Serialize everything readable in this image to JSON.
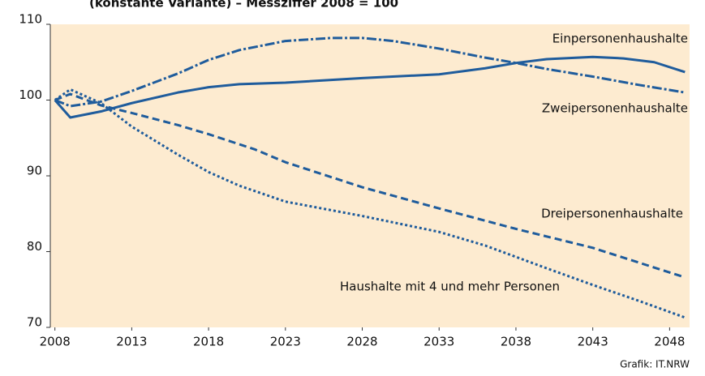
{
  "chart_data": {
    "type": "line",
    "subtitle": "(konstante Variante) – Messziffer 2008 = 100",
    "credit": "Grafik: IT.NRW",
    "xlim": [
      2007.7,
      2049.3
    ],
    "ylim": [
      70,
      110
    ],
    "xticks": [
      2008,
      2013,
      2018,
      2023,
      2028,
      2033,
      2038,
      2043,
      2048
    ],
    "yticks": [
      70,
      80,
      90,
      100,
      110
    ],
    "background": "#fdebd0",
    "series": [
      {
        "name": "Einpersonenhaushalte",
        "color": "#1f5c9c",
        "style": "solid",
        "x": [
          2008,
          2009,
          2011,
          2013,
          2016,
          2018,
          2020,
          2023,
          2028,
          2033,
          2036,
          2038,
          2040,
          2043,
          2045,
          2047,
          2049
        ],
        "values": [
          100,
          97.7,
          98.5,
          99.6,
          101,
          101.7,
          102.1,
          102.3,
          102.9,
          103.4,
          104.2,
          104.9,
          105.4,
          105.7,
          105.5,
          105,
          103.7
        ]
      },
      {
        "name": "Zweipersonenhaushalte",
        "color": "#1f5c9c",
        "style": "dashdot",
        "x": [
          2008,
          2009,
          2011,
          2013,
          2016,
          2018,
          2020,
          2023,
          2026,
          2028,
          2030,
          2033,
          2036,
          2038,
          2040,
          2043,
          2046,
          2049
        ],
        "values": [
          100,
          99.2,
          99.8,
          101.2,
          103.5,
          105.3,
          106.6,
          107.8,
          108.2,
          108.2,
          107.8,
          106.8,
          105.6,
          104.9,
          104.1,
          103.1,
          102,
          101
        ]
      },
      {
        "name": "Dreipersonenhaushalte",
        "color": "#1f5c9c",
        "style": "dashed",
        "x": [
          2008,
          2009,
          2011,
          2013,
          2016,
          2018,
          2021,
          2023,
          2028,
          2033,
          2038,
          2043,
          2049
        ],
        "values": [
          100,
          100.8,
          99.3,
          98.3,
          96.7,
          95.5,
          93.5,
          91.8,
          88.5,
          85.7,
          83,
          80.5,
          76.6
        ]
      },
      {
        "name": "Haushalte mit 4 und mehr Personen",
        "color": "#1f5c9c",
        "style": "dotted",
        "x": [
          2008,
          2009,
          2011,
          2013,
          2016,
          2018,
          2020,
          2023,
          2028,
          2033,
          2036,
          2038,
          2040,
          2043,
          2046,
          2049
        ],
        "values": [
          100,
          101.4,
          99.6,
          96.5,
          92.8,
          90.5,
          88.7,
          86.6,
          84.7,
          82.6,
          80.8,
          79.3,
          77.8,
          75.6,
          73.5,
          71.3
        ]
      }
    ]
  }
}
